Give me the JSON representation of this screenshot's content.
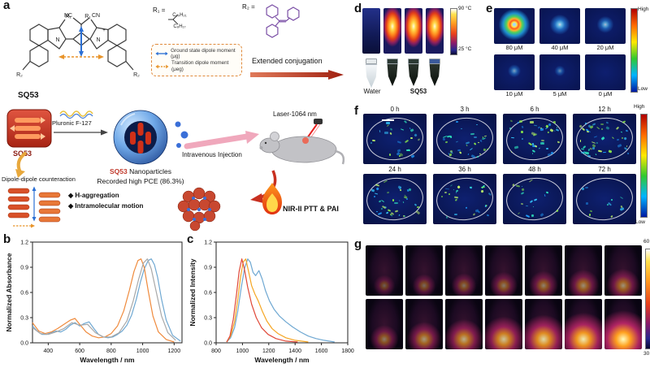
{
  "panels": {
    "a": {
      "label": "a",
      "molecule": {
        "name": "SQ53",
        "nc": "NC",
        "cn": "CN",
        "n_left": "N",
        "n_right": "N",
        "plus": "+",
        "r1_left": "R₁",
        "r1_right": "R₁",
        "r2_left": "R₂",
        "r2_right": "R₂"
      },
      "r1_def": {
        "label": "R₁ =",
        "chain_top": "C₁₀H₂₁",
        "chain_bottom": "C₈H₁₇"
      },
      "r2_def": {
        "label": "R₂ ="
      },
      "legend": {
        "ground": "Ground state dipole moment (μg)",
        "transition": "Transition dipole moment (μeg)"
      },
      "extended_conjugation": "Extended conjugation",
      "sq53_box_label": "SQ53",
      "pluronic_label": "Pluronic F-127",
      "np_name_red": "SQ53",
      "np_name_rest": " Nanoparticles",
      "np_note": "Recorded high PCE (86.3%)",
      "injection_label": "Intravenous Injection",
      "laser_label": "Laser-1064 nm",
      "dipole_label": "Dipole-dipole counteraction",
      "bullet_h_aggregation": "◆ H-aggregation",
      "bullet_intramolecular": "◆ Intramolecular motion",
      "application_label": "NIR-II PTT & PAI"
    },
    "d": {
      "label": "d",
      "temp_top": "90 °C",
      "temp_bottom": "25 °C",
      "water_label": "Water",
      "sq53_label": "SQ53",
      "thermal_hot": [
        0,
        0.85,
        1.0,
        0.9
      ]
    },
    "e": {
      "label": "e",
      "high": "High",
      "low": "Low",
      "items": [
        {
          "label": "80 μM",
          "intensity": 1.0
        },
        {
          "label": "40 μM",
          "intensity": 0.75
        },
        {
          "label": "20 μM",
          "intensity": 0.55
        },
        {
          "label": "10 μM",
          "intensity": 0.35
        },
        {
          "label": "5 μM",
          "intensity": 0.22
        },
        {
          "label": "0 μM",
          "intensity": 0.0
        }
      ]
    },
    "f": {
      "label": "f",
      "high": "High",
      "low": "Low",
      "items": [
        {
          "label": "0 h",
          "density": 26,
          "has_scalebar": true
        },
        {
          "label": "3 h",
          "density": 34
        },
        {
          "label": "6 h",
          "density": 40
        },
        {
          "label": "12 h",
          "density": 46
        },
        {
          "label": "24 h",
          "density": 38
        },
        {
          "label": "36 h",
          "density": 26
        },
        {
          "label": "48 h",
          "density": 18
        },
        {
          "label": "72 h",
          "density": 12
        }
      ]
    },
    "g": {
      "label": "g",
      "scale_top": "60",
      "scale_bottom": "30",
      "row1": [
        0.12,
        0.18,
        0.22,
        0.28,
        0.32,
        0.38,
        0.42
      ],
      "row2": [
        0.3,
        0.45,
        0.58,
        0.7,
        0.8,
        0.9,
        1.0
      ]
    }
  },
  "chart_data": [
    {
      "id": "b",
      "type": "line",
      "panel_label": "b",
      "xlabel": "Wavelength / nm",
      "ylabel": "Normalized Absorbance",
      "xlim": [
        300,
        1250
      ],
      "ylim": [
        0,
        1.2
      ],
      "xticks": [
        400,
        600,
        800,
        1000,
        1200
      ],
      "yticks": [
        0,
        0.3,
        0.6,
        0.9,
        1.2
      ],
      "legend_visible": false,
      "series": [
        {
          "name": "series-blue",
          "color": "#6fa8d2",
          "x": [
            300,
            330,
            360,
            390,
            420,
            450,
            480,
            510,
            540,
            570,
            600,
            630,
            660,
            690,
            720,
            750,
            780,
            810,
            840,
            870,
            900,
            930,
            960,
            985,
            1010,
            1035,
            1055,
            1075,
            1095,
            1120,
            1150,
            1190,
            1240
          ],
          "y": [
            0.2,
            0.14,
            0.1,
            0.1,
            0.12,
            0.14,
            0.13,
            0.16,
            0.21,
            0.24,
            0.2,
            0.23,
            0.25,
            0.17,
            0.1,
            0.07,
            0.06,
            0.07,
            0.1,
            0.14,
            0.21,
            0.33,
            0.52,
            0.72,
            0.88,
            0.98,
            1.0,
            0.93,
            0.78,
            0.52,
            0.27,
            0.09,
            0.02
          ]
        },
        {
          "name": "series-orange",
          "color": "#ef8a3c",
          "x": [
            300,
            340,
            380,
            420,
            460,
            500,
            540,
            570,
            600,
            640,
            680,
            720,
            760,
            800,
            840,
            880,
            915,
            945,
            970,
            990,
            1010,
            1035,
            1065,
            1100,
            1150,
            1200
          ],
          "y": [
            0.24,
            0.14,
            0.11,
            0.13,
            0.17,
            0.22,
            0.27,
            0.29,
            0.22,
            0.13,
            0.08,
            0.06,
            0.07,
            0.11,
            0.2,
            0.38,
            0.62,
            0.85,
            0.98,
            1.0,
            0.9,
            0.62,
            0.32,
            0.13,
            0.04,
            0.01
          ]
        },
        {
          "name": "series-gray",
          "color": "#a8a8a8",
          "x": [
            300,
            350,
            400,
            450,
            500,
            550,
            600,
            650,
            700,
            750,
            800,
            850,
            900,
            940,
            975,
            1005,
            1030,
            1055,
            1085,
            1120,
            1160,
            1210
          ],
          "y": [
            0.18,
            0.11,
            0.1,
            0.13,
            0.17,
            0.24,
            0.21,
            0.22,
            0.12,
            0.07,
            0.07,
            0.12,
            0.26,
            0.5,
            0.76,
            0.95,
            1.0,
            0.88,
            0.62,
            0.32,
            0.12,
            0.03
          ]
        }
      ]
    },
    {
      "id": "c",
      "type": "line",
      "panel_label": "c",
      "xlabel": "Wavelength / nm",
      "ylabel": "Normalized Intensity",
      "xlim": [
        800,
        1800
      ],
      "ylim": [
        0,
        1.2
      ],
      "xticks": [
        800,
        1000,
        1200,
        1400,
        1600,
        1800
      ],
      "yticks": [
        0,
        0.3,
        0.6,
        0.9,
        1.2
      ],
      "legend_visible": false,
      "series": [
        {
          "name": "series-blue",
          "color": "#6fa8d2",
          "x": [
            880,
            910,
            940,
            965,
            990,
            1015,
            1040,
            1060,
            1080,
            1100,
            1125,
            1150,
            1175,
            1205,
            1240,
            1280,
            1330,
            1380,
            1440,
            1500,
            1560,
            1620,
            1700
          ],
          "y": [
            0.01,
            0.06,
            0.18,
            0.38,
            0.65,
            0.88,
            1.0,
            0.96,
            0.84,
            0.8,
            0.86,
            0.76,
            0.62,
            0.5,
            0.4,
            0.32,
            0.25,
            0.19,
            0.13,
            0.08,
            0.05,
            0.03,
            0.01
          ]
        },
        {
          "name": "series-orange",
          "color": "#f5a623",
          "x": [
            880,
            910,
            940,
            965,
            985,
            1005,
            1025,
            1045,
            1070,
            1095,
            1120,
            1150,
            1185,
            1225,
            1270,
            1330,
            1400,
            1500
          ],
          "y": [
            0.01,
            0.08,
            0.25,
            0.52,
            0.78,
            0.96,
            1.0,
            0.86,
            0.68,
            0.58,
            0.5,
            0.38,
            0.26,
            0.17,
            0.11,
            0.06,
            0.03,
            0.01
          ]
        },
        {
          "name": "series-red",
          "color": "#e04838",
          "x": [
            880,
            905,
            930,
            955,
            975,
            995,
            1015,
            1040,
            1070,
            1105,
            1145,
            1195,
            1255,
            1330,
            1420
          ],
          "y": [
            0.01,
            0.08,
            0.28,
            0.58,
            0.85,
            1.0,
            0.88,
            0.66,
            0.46,
            0.3,
            0.18,
            0.1,
            0.05,
            0.02,
            0.01
          ]
        }
      ]
    }
  ]
}
